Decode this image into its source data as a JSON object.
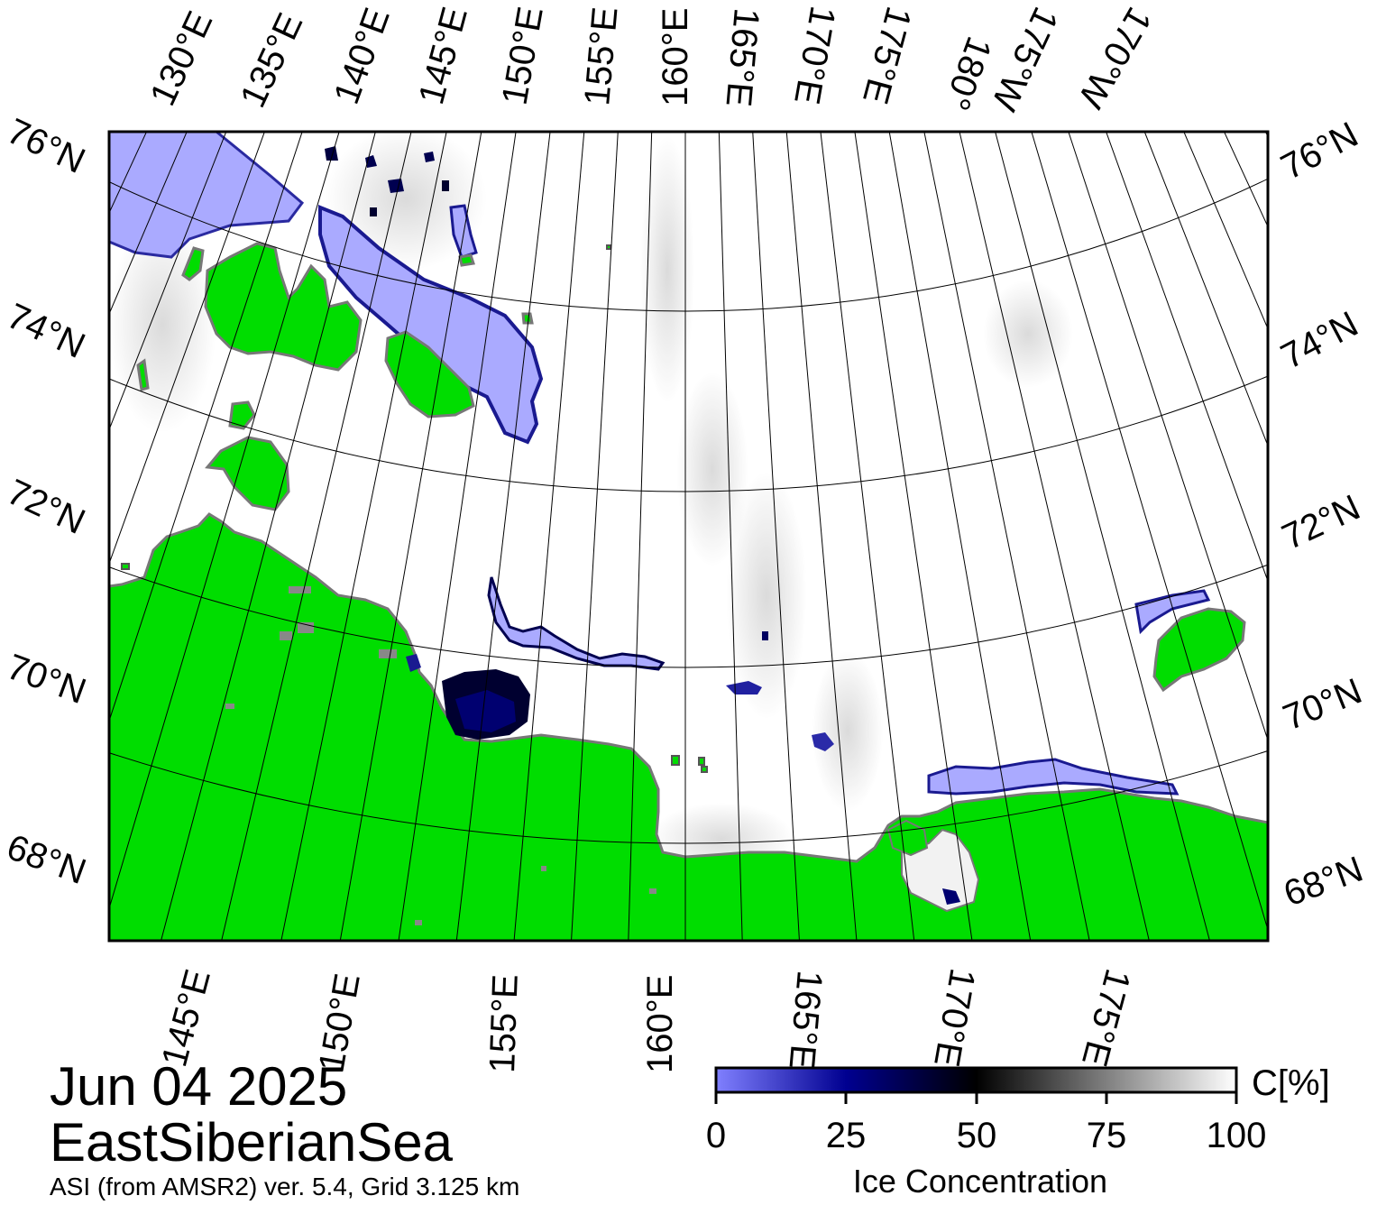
{
  "map": {
    "date": "Jun 04 2025",
    "region": "EastSiberianSea",
    "source": "ASI (from AMSR2) ver. 5.4,  Grid 3.125 km",
    "colors": {
      "land": "#00dd00",
      "land_border": "#888888",
      "open_water": "#ffffff",
      "low_ice": "#aaaaff",
      "mid_ice": "#000060",
      "high_ice": "#000000",
      "frame": "#000000"
    },
    "top_lon_labels": [
      "130°E",
      "135°E",
      "140°E",
      "145°E",
      "150°E",
      "155°E",
      "160°E",
      "165°E",
      "170°E",
      "175°E",
      "180°",
      "175°W",
      "170°W"
    ],
    "bottom_lon_labels": [
      "145°E",
      "150°E",
      "155°E",
      "160°E",
      "165°E",
      "170°E",
      "175°E"
    ],
    "left_lat_labels": [
      "76°N",
      "74°N",
      "72°N",
      "70°N",
      "68°N"
    ],
    "right_lat_labels": [
      "76°N",
      "74°N",
      "72°N",
      "70°N",
      "68°N"
    ]
  },
  "colorbar": {
    "title": "Ice Concentration",
    "unit": "C[%]",
    "min": 0,
    "max": 100,
    "ticks": [
      "0",
      "25",
      "50",
      "75",
      "100"
    ],
    "stops": [
      {
        "value": 0,
        "color": "#8080ff"
      },
      {
        "value": 25,
        "color": "#000090"
      },
      {
        "value": 50,
        "color": "#000000"
      },
      {
        "value": 100,
        "color": "#ffffff"
      }
    ]
  }
}
